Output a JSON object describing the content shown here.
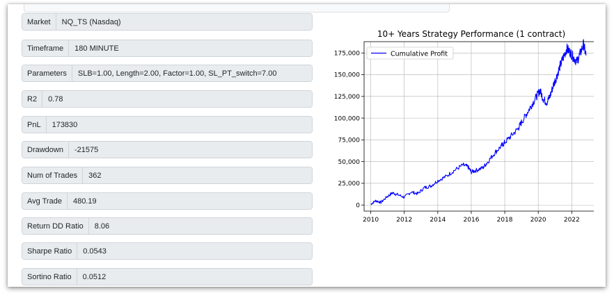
{
  "fields": [
    {
      "label": "Market",
      "value": "NQ_TS (Nasdaq)"
    },
    {
      "label": "Timeframe",
      "value": "180 MINUTE"
    },
    {
      "label": "Parameters",
      "value": "SLB=1.00, Length=2.00, Factor=1.00, SL_PT_switch=7.00"
    },
    {
      "label": "R2",
      "value": "0.78"
    },
    {
      "label": "PnL",
      "value": "173830"
    },
    {
      "label": "Drawdown",
      "value": "-21575"
    },
    {
      "label": "Num of Trades",
      "value": "362"
    },
    {
      "label": "Avg Trade",
      "value": "480.19"
    },
    {
      "label": "Return DD Ratio",
      "value": "8.06"
    },
    {
      "label": "Sharpe Ratio",
      "value": "0.0543"
    },
    {
      "label": "Sortino Ratio",
      "value": "0.0512"
    }
  ],
  "chart_data": {
    "type": "line",
    "title": "10+ Years Strategy Performance (1 contract)",
    "xlabel": "",
    "ylabel": "",
    "xlim": [
      2009.6,
      2023.4
    ],
    "ylim": [
      -7000,
      188000
    ],
    "x_ticks": [
      2010,
      2012,
      2014,
      2016,
      2018,
      2020,
      2022
    ],
    "x_tick_labels": [
      "2010",
      "2012",
      "2014",
      "2016",
      "2018",
      "2020",
      "2022"
    ],
    "y_ticks": [
      0,
      25000,
      50000,
      75000,
      100000,
      125000,
      150000,
      175000
    ],
    "y_tick_labels": [
      "0",
      "25,000",
      "50,000",
      "75,000",
      "100,000",
      "125,000",
      "150,000",
      "175,000"
    ],
    "grid": true,
    "legend_position": "top-left",
    "series": [
      {
        "name": "Cumulative Profit",
        "color": "#0000ff",
        "x": [
          2010.0,
          2010.3,
          2010.6,
          2011.0,
          2011.3,
          2011.6,
          2012.0,
          2012.4,
          2012.8,
          2013.2,
          2013.6,
          2014.0,
          2014.5,
          2015.0,
          2015.5,
          2015.8,
          2016.0,
          2016.3,
          2016.7,
          2017.0,
          2017.4,
          2017.8,
          2018.0,
          2018.4,
          2018.8,
          2019.0,
          2019.3,
          2019.6,
          2019.9,
          2020.1,
          2020.3,
          2020.5,
          2020.7,
          2020.9,
          2021.1,
          2021.3,
          2021.5,
          2021.7,
          2021.9,
          2022.1,
          2022.3,
          2022.5,
          2022.7,
          2022.85
        ],
        "y": [
          1000,
          5000,
          3000,
          10000,
          14000,
          12000,
          9000,
          15000,
          13000,
          20000,
          22000,
          28000,
          33000,
          40000,
          46000,
          44000,
          38000,
          40000,
          43000,
          50000,
          60000,
          68000,
          72000,
          80000,
          88000,
          95000,
          105000,
          115000,
          125000,
          132000,
          122000,
          118000,
          125000,
          138000,
          148000,
          160000,
          170000,
          180000,
          176000,
          170000,
          165000,
          174000,
          185000,
          172000
        ]
      }
    ]
  }
}
